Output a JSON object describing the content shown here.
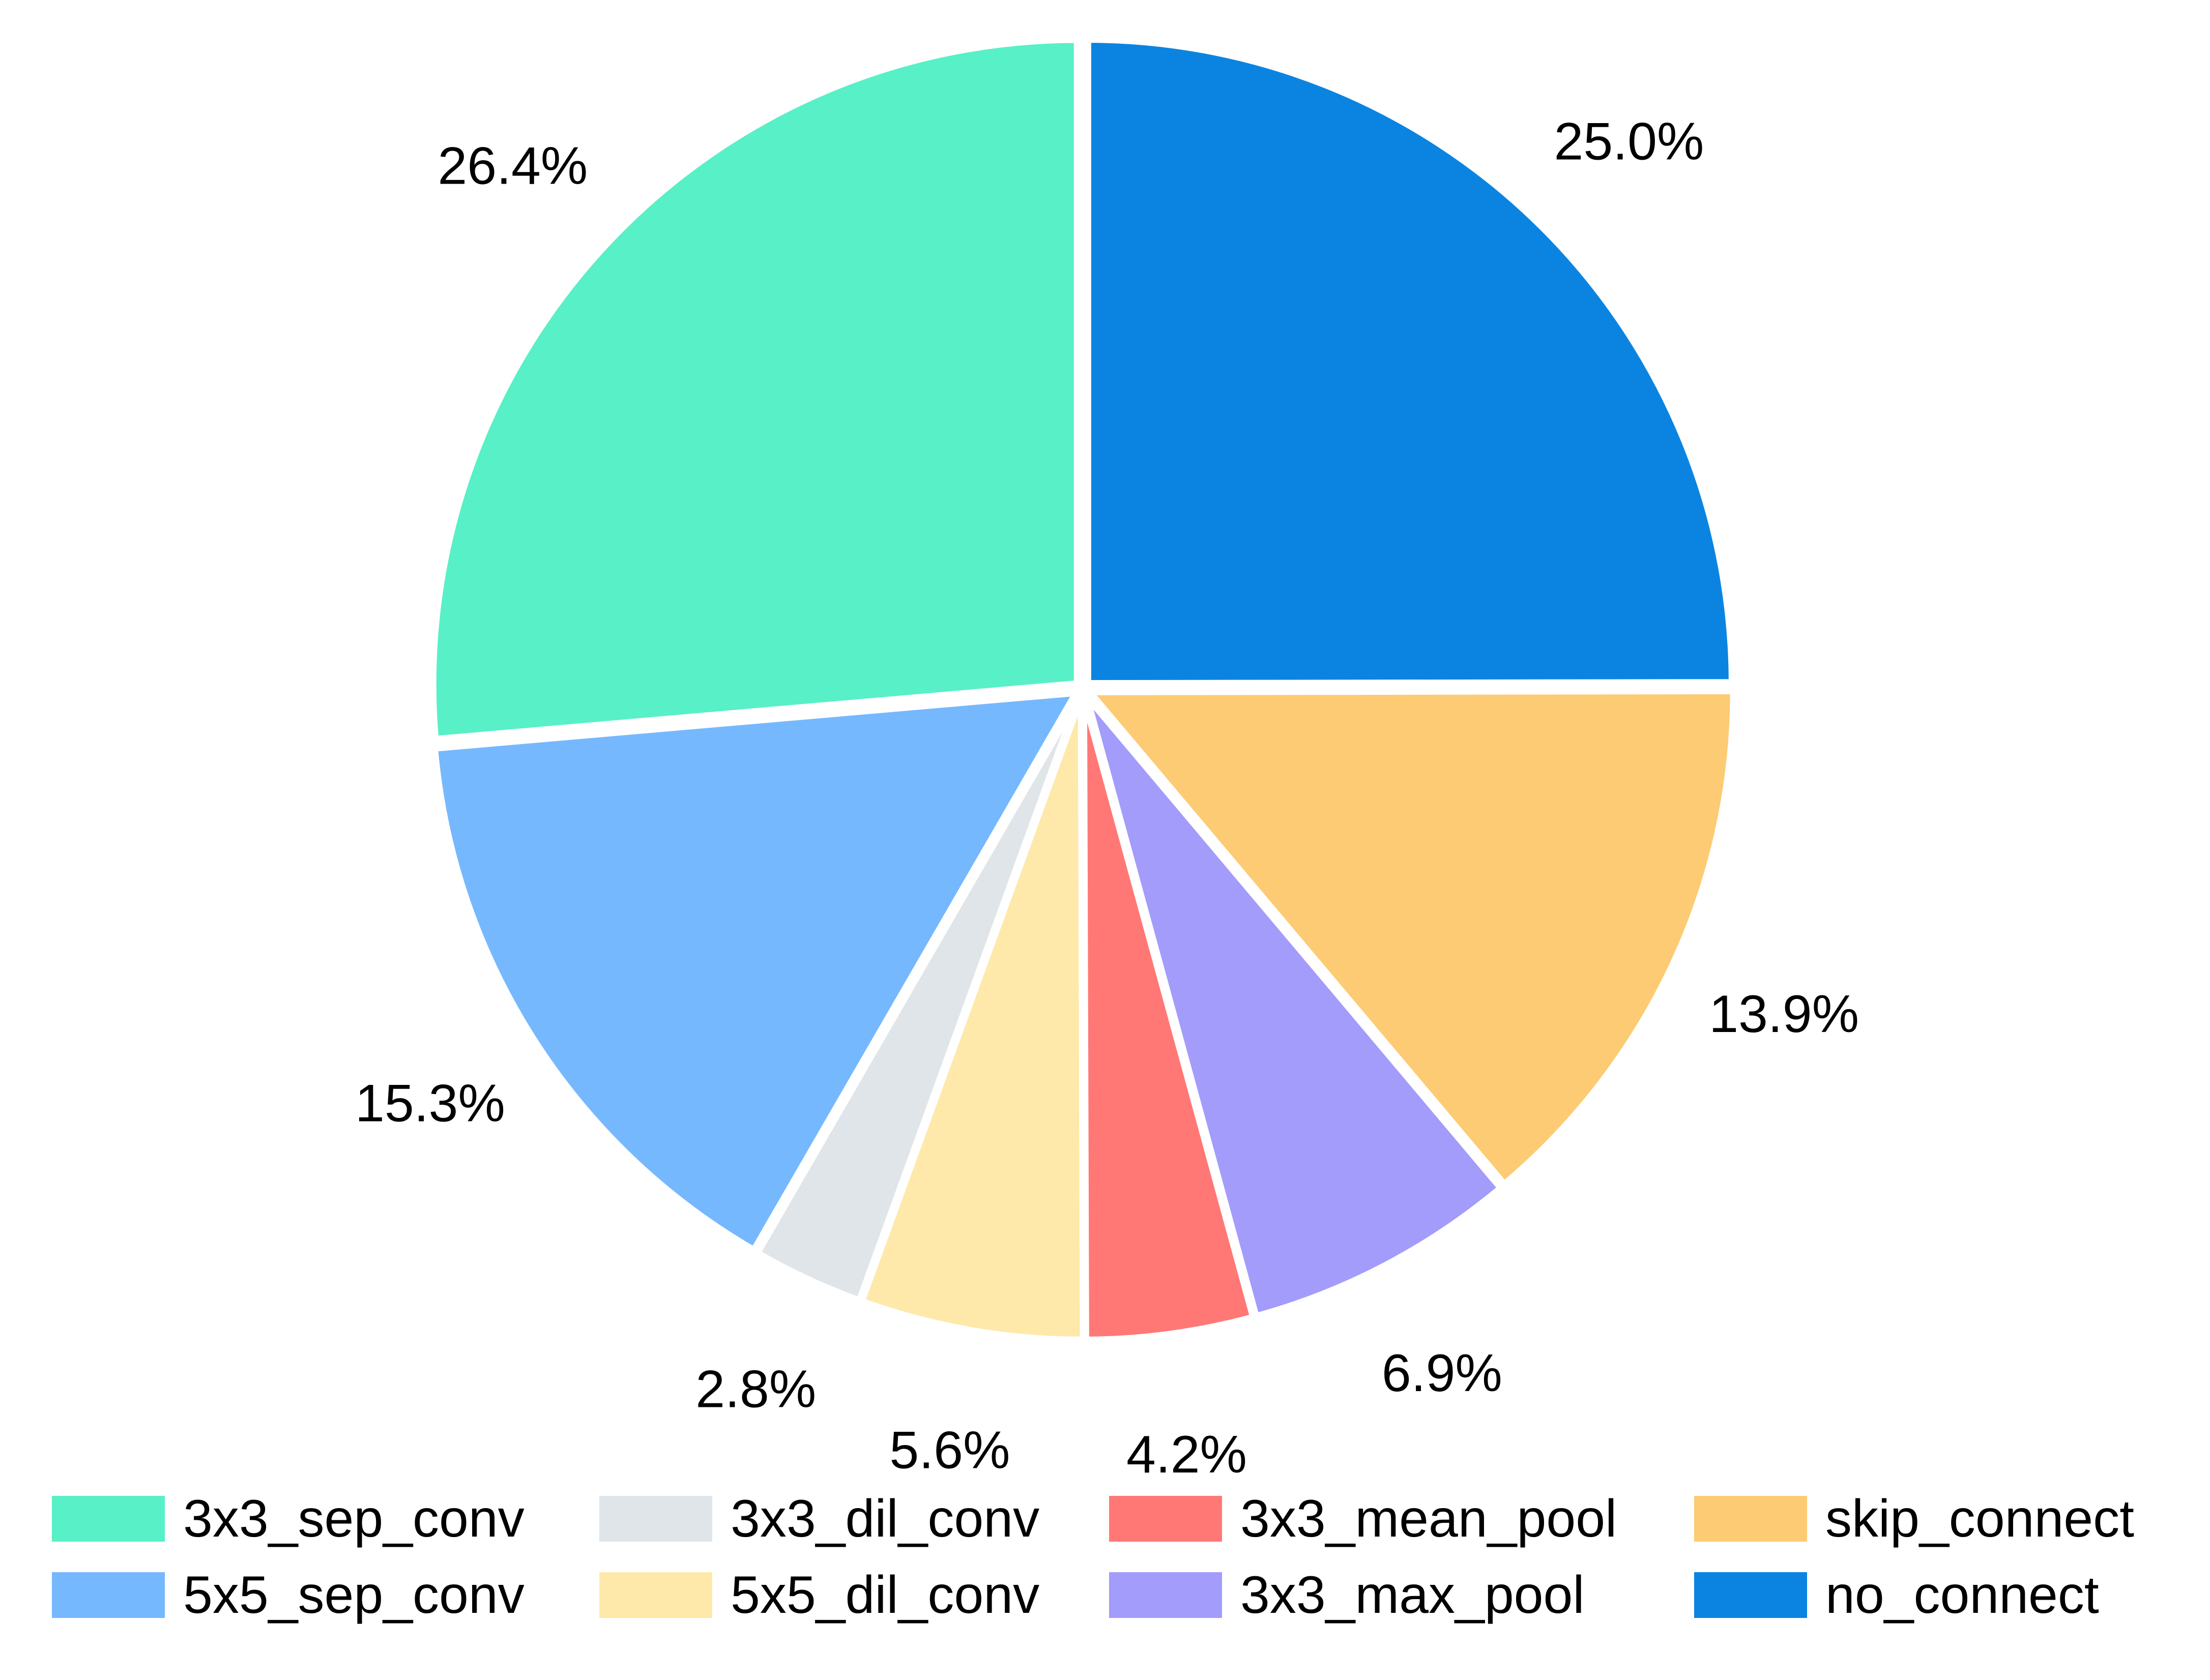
{
  "chart_data": {
    "type": "pie",
    "title": "",
    "slices": [
      {
        "name": "no_connect",
        "value": 25.0,
        "label": "25.0%",
        "color": "#0B84E1"
      },
      {
        "name": "skip_connect",
        "value": 13.9,
        "label": "13.9%",
        "color": "#FDCB73"
      },
      {
        "name": "3x3_max_pool",
        "value": 6.9,
        "label": "6.9%",
        "color": "#A39CFB"
      },
      {
        "name": "3x3_mean_pool",
        "value": 4.2,
        "label": "4.2%",
        "color": "#FF7875"
      },
      {
        "name": "5x5_dil_conv",
        "value": 5.6,
        "label": "5.6%",
        "color": "#FEE9AA"
      },
      {
        "name": "3x3_dil_conv",
        "value": 2.8,
        "label": "2.8%",
        "color": "#DFE5E8"
      },
      {
        "name": "5x5_sep_conv",
        "value": 15.3,
        "label": "15.3%",
        "color": "#76B8FE"
      },
      {
        "name": "3x3_sep_conv",
        "value": 26.4,
        "label": "26.4%",
        "color": "#58F0C6"
      }
    ],
    "start_angle_deg": 90,
    "direction": "clockwise",
    "legend": {
      "placement": "bottom",
      "columns": 4,
      "order": [
        "3x3_sep_conv",
        "5x5_sep_conv",
        "3x3_dil_conv",
        "5x5_dil_conv",
        "3x3_mean_pool",
        "3x3_max_pool",
        "skip_connect",
        "no_connect"
      ]
    }
  }
}
